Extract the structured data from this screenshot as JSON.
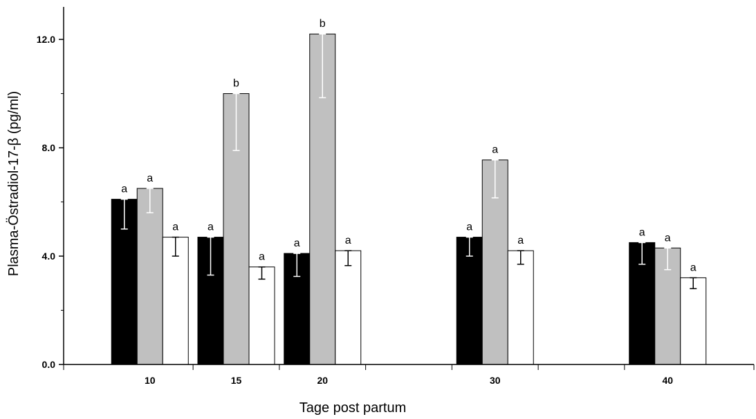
{
  "chart_data": {
    "type": "bar",
    "title": "",
    "xlabel": "Tage post partum",
    "ylabel": "Plasma-Östradiol-17-β (pg/ml)",
    "ylim": [
      0,
      13.2
    ],
    "yticks": [
      "0.0",
      "4.0",
      "8.0",
      "12.0"
    ],
    "ytick_values": [
      0,
      4,
      8,
      12
    ],
    "x_domain": [
      5,
      45
    ],
    "x_boundaries": [
      5,
      12.5,
      17.5,
      22.5,
      27.5,
      32.5,
      37.5,
      45
    ],
    "categories": [
      "10",
      "15",
      "20",
      "30",
      "40"
    ],
    "x": [
      10,
      15,
      20,
      30,
      40
    ],
    "legend": "none",
    "grid": false,
    "colors": [
      "#000000",
      "#c0c0c0",
      "#ffffff"
    ],
    "series": [
      {
        "values": [
          6.1,
          4.7,
          4.1,
          4.7,
          4.5
        ],
        "err_low": [
          1.1,
          1.4,
          0.85,
          0.7,
          0.8
        ],
        "err_high": [
          0.0,
          0.0,
          0.0,
          0.0,
          0.0
        ],
        "labels": [
          "a",
          "a",
          "a",
          "a",
          "a"
        ]
      },
      {
        "values": [
          6.5,
          10.0,
          12.2,
          7.55,
          4.3
        ],
        "err_low": [
          0.9,
          2.1,
          2.35,
          1.4,
          0.8
        ],
        "err_high": [
          0.0,
          0.0,
          0.0,
          0.0,
          0.0
        ],
        "labels": [
          "a",
          "b",
          "b",
          "a",
          "a"
        ]
      },
      {
        "values": [
          4.7,
          3.6,
          4.2,
          4.2,
          3.2
        ],
        "err_low": [
          0.7,
          0.45,
          0.55,
          0.5,
          0.4
        ],
        "err_high": [
          0.0,
          0.0,
          0.0,
          0.0,
          0.0
        ],
        "labels": [
          "a",
          "a",
          "a",
          "a",
          "a"
        ]
      }
    ]
  }
}
